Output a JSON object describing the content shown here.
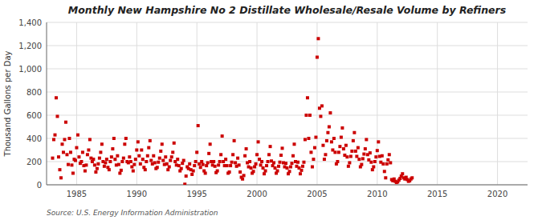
{
  "chart_data": {
    "type": "scatter",
    "title": "Monthly New Hampshire No 2 Distillate Wholesale/Resale Volume by Refiners",
    "ylabel": "Thousand Gallons per Day",
    "source": "Source: U.S. Energy Information Administration",
    "color": "#cc0000",
    "marker": "square",
    "grid": true,
    "xlim": [
      1982.5,
      2022.5
    ],
    "ylim": [
      0,
      1400
    ],
    "xticks": [
      1985,
      1990,
      1995,
      2000,
      2005,
      2010,
      2015,
      2020
    ],
    "yticks": [
      0,
      200,
      400,
      600,
      800,
      {
        "value": 1000,
        "label": "1,000"
      },
      {
        "value": 1200,
        "label": "1,200"
      },
      {
        "value": 1400,
        "label": "1,400"
      }
    ],
    "x": [
      1983.0,
      1983.1,
      1983.2,
      1983.3,
      1983.4,
      1983.5,
      1983.6,
      1983.7,
      1983.8,
      1983.9,
      1984.0,
      1984.1,
      1984.2,
      1984.3,
      1984.4,
      1984.5,
      1984.6,
      1984.7,
      1984.8,
      1984.9,
      1985.0,
      1985.1,
      1985.2,
      1985.3,
      1985.4,
      1985.5,
      1985.6,
      1985.7,
      1985.8,
      1985.9,
      1986.0,
      1986.1,
      1986.2,
      1986.3,
      1986.4,
      1986.5,
      1986.6,
      1986.7,
      1986.8,
      1986.9,
      1987.0,
      1987.1,
      1987.2,
      1987.3,
      1987.4,
      1987.5,
      1987.6,
      1987.7,
      1987.8,
      1987.9,
      1988.0,
      1988.1,
      1988.2,
      1988.3,
      1988.4,
      1988.5,
      1988.6,
      1988.7,
      1988.8,
      1988.9,
      1989.0,
      1989.1,
      1989.2,
      1989.3,
      1989.4,
      1989.5,
      1989.6,
      1989.7,
      1989.8,
      1989.9,
      1990.0,
      1990.1,
      1990.2,
      1990.3,
      1990.4,
      1990.5,
      1990.6,
      1990.7,
      1990.8,
      1990.9,
      1991.0,
      1991.1,
      1991.2,
      1991.3,
      1991.4,
      1991.5,
      1991.6,
      1991.7,
      1991.8,
      1991.9,
      1992.0,
      1992.1,
      1992.2,
      1992.3,
      1992.4,
      1992.5,
      1992.6,
      1992.7,
      1992.8,
      1992.9,
      1993.0,
      1993.1,
      1993.2,
      1993.3,
      1993.4,
      1993.5,
      1993.6,
      1993.7,
      1993.8,
      1993.9,
      1994.0,
      1994.1,
      1994.2,
      1994.3,
      1994.4,
      1994.5,
      1994.6,
      1994.7,
      1994.8,
      1994.9,
      1995.0,
      1995.1,
      1995.2,
      1995.3,
      1995.4,
      1995.5,
      1995.6,
      1995.7,
      1995.8,
      1995.9,
      1996.0,
      1996.1,
      1996.2,
      1996.3,
      1996.4,
      1996.5,
      1996.6,
      1996.7,
      1996.8,
      1996.9,
      1997.0,
      1997.1,
      1997.2,
      1997.3,
      1997.4,
      1997.5,
      1997.6,
      1997.7,
      1997.8,
      1997.9,
      1998.0,
      1998.1,
      1998.2,
      1998.3,
      1998.4,
      1998.5,
      1998.6,
      1998.7,
      1998.8,
      1998.9,
      1999.0,
      1999.1,
      1999.2,
      1999.3,
      1999.4,
      1999.5,
      1999.6,
      1999.7,
      1999.8,
      1999.9,
      2000.0,
      2000.1,
      2000.2,
      2000.3,
      2000.4,
      2000.5,
      2000.6,
      2000.7,
      2000.8,
      2000.9,
      2001.0,
      2001.1,
      2001.2,
      2001.3,
      2001.4,
      2001.5,
      2001.6,
      2001.7,
      2001.8,
      2001.9,
      2002.0,
      2002.1,
      2002.2,
      2002.3,
      2002.4,
      2002.5,
      2002.6,
      2002.7,
      2002.8,
      2002.9,
      2003.0,
      2003.1,
      2003.2,
      2003.3,
      2003.4,
      2003.5,
      2003.6,
      2003.7,
      2003.8,
      2003.9,
      2004.0,
      2004.1,
      2004.2,
      2004.3,
      2004.4,
      2004.5,
      2004.6,
      2004.7,
      2004.8,
      2004.9,
      2005.0,
      2005.1,
      2005.2,
      2005.3,
      2005.4,
      2005.5,
      2005.6,
      2005.7,
      2005.8,
      2005.9,
      2006.0,
      2006.1,
      2006.2,
      2006.3,
      2006.4,
      2006.5,
      2006.6,
      2006.7,
      2006.8,
      2006.9,
      2007.0,
      2007.1,
      2007.2,
      2007.3,
      2007.4,
      2007.5,
      2007.6,
      2007.7,
      2007.8,
      2007.9,
      2008.0,
      2008.1,
      2008.2,
      2008.3,
      2008.4,
      2008.5,
      2008.6,
      2008.7,
      2008.8,
      2008.9,
      2009.0,
      2009.1,
      2009.2,
      2009.3,
      2009.4,
      2009.5,
      2009.6,
      2009.7,
      2009.8,
      2009.9,
      2010.0,
      2010.1,
      2010.2,
      2010.3,
      2010.4,
      2010.5,
      2010.6,
      2010.7,
      2010.8,
      2010.9,
      2011.0,
      2011.1,
      2011.2,
      2011.3,
      2011.4,
      2011.5,
      2011.6,
      2011.7,
      2011.8,
      2011.9,
      2012.0,
      2012.1,
      2012.2,
      2012.3,
      2012.4,
      2012.5,
      2012.6,
      2012.7,
      2012.8,
      2012.9
    ],
    "values": [
      230,
      390,
      430,
      750,
      590,
      240,
      130,
      60,
      350,
      280,
      390,
      540,
      260,
      175,
      400,
      280,
      170,
      100,
      220,
      210,
      320,
      430,
      240,
      185,
      200,
      280,
      165,
      120,
      170,
      260,
      300,
      390,
      230,
      200,
      220,
      170,
      110,
      140,
      180,
      230,
      280,
      350,
      200,
      160,
      190,
      220,
      150,
      130,
      200,
      240,
      310,
      400,
      220,
      170,
      250,
      175,
      100,
      125,
      200,
      230,
      350,
      400,
      200,
      190,
      240,
      200,
      155,
      120,
      175,
      220,
      300,
      370,
      250,
      180,
      300,
      220,
      150,
      130,
      200,
      250,
      320,
      380,
      210,
      180,
      250,
      190,
      140,
      150,
      195,
      230,
      290,
      350,
      210,
      175,
      240,
      180,
      130,
      155,
      210,
      240,
      280,
      360,
      200,
      170,
      220,
      165,
      120,
      140,
      185,
      210,
      5,
      75,
      155,
      140,
      180,
      130,
      90,
      120,
      165,
      200,
      280,
      510,
      180,
      150,
      200,
      175,
      120,
      100,
      165,
      190,
      270,
      350,
      200,
      170,
      200,
      160,
      105,
      120,
      170,
      200,
      260,
      420,
      200,
      165,
      220,
      165,
      100,
      110,
      165,
      195,
      260,
      380,
      190,
      160,
      230,
      170,
      110,
      65,
      50,
      80,
      250,
      310,
      190,
      155,
      200,
      145,
      100,
      115,
      155,
      180,
      260,
      370,
      220,
      170,
      200,
      145,
      95,
      120,
      165,
      200,
      260,
      330,
      205,
      165,
      190,
      145,
      100,
      120,
      160,
      195,
      255,
      315,
      190,
      155,
      185,
      145,
      95,
      115,
      155,
      185,
      250,
      350,
      200,
      160,
      195,
      145,
      95,
      125,
      160,
      195,
      390,
      600,
      750,
      400,
      600,
      280,
      155,
      220,
      320,
      410,
      1100,
      1260,
      660,
      590,
      680,
      340,
      220,
      260,
      380,
      450,
      500,
      620,
      370,
      300,
      400,
      280,
      180,
      200,
      280,
      330,
      410,
      490,
      310,
      255,
      340,
      240,
      160,
      190,
      245,
      290,
      380,
      450,
      290,
      245,
      320,
      220,
      155,
      175,
      225,
      265,
      310,
      390,
      260,
      215,
      275,
      195,
      130,
      155,
      200,
      240,
      295,
      370,
      245,
      195,
      250,
      180,
      115,
      60,
      180,
      215,
      260,
      190,
      45,
      35,
      50,
      30,
      20,
      25,
      40,
      55,
      75,
      95,
      60,
      50,
      65,
      45,
      30,
      35,
      50,
      60
    ]
  }
}
